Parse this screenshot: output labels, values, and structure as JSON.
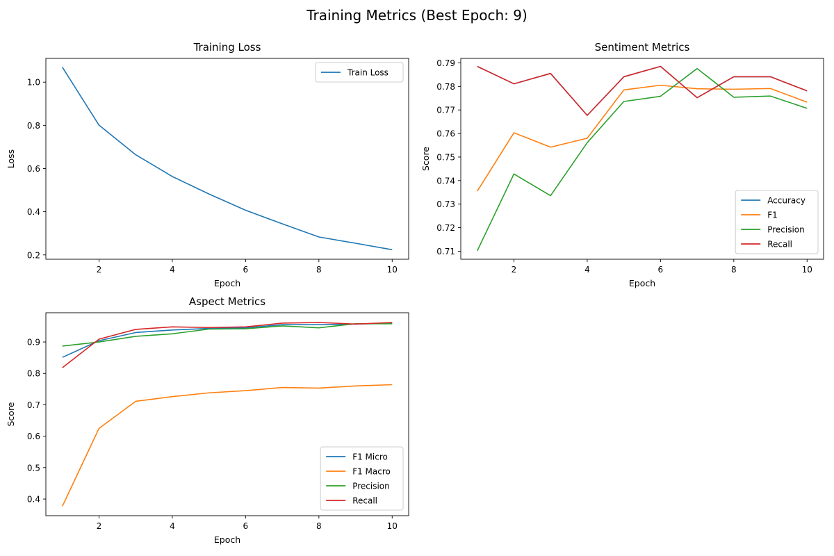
{
  "figure": {
    "title": "Training Metrics (Best Epoch: 9)"
  },
  "colors": {
    "blue": "#1f77b4",
    "orange": "#ff7f0e",
    "green": "#2ca02c",
    "red": "#d62728"
  },
  "chart_data": [
    {
      "id": "loss",
      "type": "line",
      "title": "Training Loss",
      "xlabel": "Epoch",
      "ylabel": "Loss",
      "xlim": [
        0.55,
        10.45
      ],
      "ylim": [
        0.18,
        1.11
      ],
      "xticks": [
        2,
        4,
        6,
        8,
        10
      ],
      "yticks": [
        0.2,
        0.4,
        0.6,
        0.8,
        1.0
      ],
      "ytick_decimals": 1,
      "legend": "top-right",
      "grid": false,
      "x": [
        1,
        2,
        3,
        4,
        5,
        6,
        7,
        8,
        9,
        10
      ],
      "series": [
        {
          "name": "Train Loss",
          "color": "#1f77b4",
          "values": [
            1.069,
            0.801,
            0.664,
            0.563,
            0.482,
            0.407,
            0.344,
            0.283,
            0.254,
            0.224
          ]
        }
      ]
    },
    {
      "id": "sentiment",
      "type": "line",
      "title": "Sentiment Metrics",
      "xlabel": "Epoch",
      "ylabel": "Score",
      "xlim": [
        0.55,
        10.45
      ],
      "ylim": [
        0.7066,
        0.7919
      ],
      "xticks": [
        2,
        4,
        6,
        8,
        10
      ],
      "yticks": [
        0.71,
        0.72,
        0.73,
        0.74,
        0.75,
        0.76,
        0.77,
        0.78,
        0.79
      ],
      "ytick_decimals": 2,
      "legend": "bottom-right",
      "grid": false,
      "x": [
        1,
        2,
        3,
        4,
        5,
        6,
        7,
        8,
        9,
        10
      ],
      "series": [
        {
          "name": "Accuracy",
          "color": "#1f77b4",
          "values": [
            0.7885,
            0.7811,
            0.7855,
            0.7677,
            0.7841,
            0.7885,
            0.7752,
            0.7841,
            0.7841,
            0.7781
          ]
        },
        {
          "name": "F1",
          "color": "#ff7f0e",
          "values": [
            0.7355,
            0.7603,
            0.7542,
            0.758,
            0.7785,
            0.7805,
            0.779,
            0.7788,
            0.7791,
            0.7733
          ]
        },
        {
          "name": "Precision",
          "color": "#2ca02c",
          "values": [
            0.7102,
            0.7428,
            0.7336,
            0.7561,
            0.7736,
            0.7758,
            0.7876,
            0.7754,
            0.7759,
            0.7707
          ]
        },
        {
          "name": "Recall",
          "color": "#d62728",
          "values": [
            0.7885,
            0.7811,
            0.7855,
            0.7677,
            0.7841,
            0.7885,
            0.7752,
            0.7841,
            0.7841,
            0.7781
          ]
        }
      ]
    },
    {
      "id": "aspect",
      "type": "line",
      "title": "Aspect Metrics",
      "xlabel": "Epoch",
      "ylabel": "Score",
      "xlim": [
        0.55,
        10.45
      ],
      "ylim": [
        0.347,
        0.993
      ],
      "xticks": [
        2,
        4,
        6,
        8,
        10
      ],
      "yticks": [
        0.4,
        0.5,
        0.6,
        0.7,
        0.8,
        0.9
      ],
      "ytick_decimals": 1,
      "legend": "bottom-right",
      "grid": false,
      "x": [
        1,
        2,
        3,
        4,
        5,
        6,
        7,
        8,
        9,
        10
      ],
      "series": [
        {
          "name": "F1 Micro",
          "color": "#1f77b4",
          "values": [
            0.851,
            0.904,
            0.93,
            0.938,
            0.943,
            0.945,
            0.955,
            0.955,
            0.957,
            0.96
          ]
        },
        {
          "name": "F1 Macro",
          "color": "#ff7f0e",
          "values": [
            0.377,
            0.625,
            0.711,
            0.726,
            0.738,
            0.745,
            0.755,
            0.753,
            0.76,
            0.764
          ]
        },
        {
          "name": "Precision",
          "color": "#2ca02c",
          "values": [
            0.887,
            0.9,
            0.918,
            0.926,
            0.941,
            0.942,
            0.951,
            0.945,
            0.958,
            0.958
          ]
        },
        {
          "name": "Recall",
          "color": "#d62728",
          "values": [
            0.818,
            0.909,
            0.94,
            0.948,
            0.946,
            0.948,
            0.96,
            0.962,
            0.957,
            0.962
          ]
        }
      ]
    }
  ]
}
